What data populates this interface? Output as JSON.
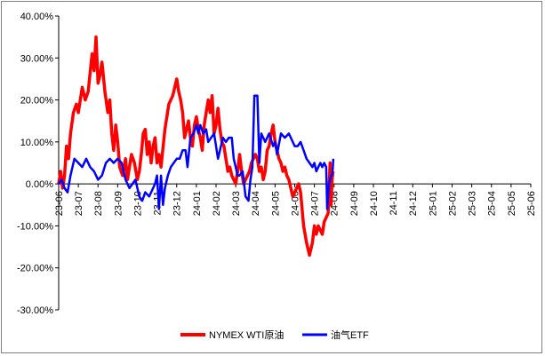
{
  "chart_data": {
    "type": "line",
    "title": "",
    "xlabel": "",
    "ylabel": "",
    "ylim": [
      -30,
      40
    ],
    "yticks": [
      -30,
      -20,
      -10,
      0,
      10,
      20,
      30,
      40
    ],
    "ytick_labels": [
      "-30.00%",
      "-20.00%",
      "-10.00%",
      "0.00%",
      "10.00%",
      "20.00%",
      "30.00%",
      "40.00%"
    ],
    "x_categories": [
      "23-06",
      "23-07",
      "23-08",
      "23-09",
      "23-10",
      "23-11",
      "23-12",
      "24-01",
      "24-02",
      "24-03",
      "24-04",
      "24-05",
      "24-06",
      "24-07",
      "24-08",
      "24-09",
      "24-10",
      "24-11",
      "24-12",
      "25-01",
      "25-02",
      "25-03",
      "25-04",
      "25-05",
      "25-06"
    ],
    "legend_position": "bottom",
    "grid": false,
    "series": [
      {
        "name": "NYMEX WTI原油",
        "color": "#ff0000",
        "values": [
          0,
          3,
          -1,
          2,
          9,
          6,
          12,
          17,
          19,
          17,
          23,
          20,
          22,
          31,
          27,
          35,
          24,
          26,
          29,
          22,
          17,
          20,
          12,
          8,
          14,
          10,
          4,
          2,
          6,
          1,
          4,
          7,
          5,
          1,
          3,
          7,
          12,
          13,
          7,
          10,
          5,
          9,
          11,
          5,
          7,
          4,
          13,
          19,
          21,
          25,
          22,
          20,
          17,
          11,
          13,
          15,
          11,
          9,
          14,
          16,
          13,
          11,
          8,
          14,
          17,
          20,
          17,
          21,
          12,
          14,
          18,
          13,
          10,
          9,
          6,
          3,
          4,
          2,
          1,
          0,
          3,
          7,
          3,
          0,
          1,
          2,
          3,
          5,
          6,
          7,
          6,
          3,
          4,
          1,
          3,
          8,
          9,
          12,
          14,
          10,
          8,
          6,
          5,
          3,
          4,
          2,
          1,
          -1,
          -3,
          -2,
          -1,
          0,
          -2,
          -10,
          -14,
          -17,
          -14,
          -10,
          -12,
          -10,
          -11,
          -12,
          -9,
          -8,
          -7,
          5,
          -5,
          1,
          3
        ],
        "x": [
          0.0,
          0.1,
          0.2,
          0.3,
          0.4,
          0.5,
          0.6,
          0.75,
          0.9,
          1.0,
          1.2,
          1.35,
          1.5,
          1.7,
          1.8,
          1.9,
          2.0,
          2.1,
          2.2,
          2.35,
          2.5,
          2.6,
          2.7,
          2.8,
          2.9,
          3.0,
          3.1,
          3.25,
          3.4,
          3.5,
          3.6,
          3.7,
          3.85,
          4.0,
          4.1,
          4.2,
          4.3,
          4.4,
          4.5,
          4.6,
          4.7,
          4.8,
          4.9,
          5.0,
          5.1,
          5.2,
          5.4,
          5.6,
          5.8,
          6.0,
          6.1,
          6.2,
          6.3,
          6.4,
          6.5,
          6.6,
          6.7,
          6.8,
          6.9,
          7.0,
          7.1,
          7.2,
          7.3,
          7.4,
          7.5,
          7.6,
          7.7,
          7.8,
          7.9,
          8.0,
          8.1,
          8.2,
          8.3,
          8.4,
          8.5,
          8.6,
          8.7,
          8.8,
          8.9,
          9.0,
          9.1,
          9.2,
          9.3,
          9.4,
          9.5,
          9.6,
          9.7,
          9.8,
          9.9,
          10.0,
          10.1,
          10.2,
          10.3,
          10.4,
          10.5,
          10.6,
          10.7,
          10.8,
          10.9,
          11.0,
          11.1,
          11.2,
          11.3,
          11.4,
          11.5,
          11.6,
          11.7,
          11.8,
          11.9,
          12.0,
          12.1,
          12.2,
          12.3,
          12.45,
          12.6,
          12.75,
          12.9,
          13.0,
          13.1,
          13.2,
          13.3,
          13.4,
          13.5,
          13.6,
          13.7,
          13.8,
          13.85,
          13.9,
          13.95
        ]
      },
      {
        "name": "油气ETF",
        "color": "#0000ff",
        "values": [
          0,
          1,
          -1,
          -2,
          2,
          6,
          5,
          4,
          6,
          4,
          3,
          1,
          2,
          5,
          6,
          5,
          6,
          5,
          1,
          -1,
          0,
          1,
          -1,
          -3,
          -4,
          -2,
          -3,
          -1,
          0,
          2,
          -6,
          2,
          -5,
          -1,
          2,
          4,
          5,
          6,
          6,
          8,
          8,
          4,
          11,
          12,
          14,
          12,
          14,
          12,
          13,
          10,
          11,
          12,
          9,
          6,
          8,
          11,
          10,
          11,
          11,
          6,
          4,
          2,
          2,
          3,
          -3,
          -4,
          1,
          4,
          21,
          21,
          5,
          12,
          10,
          12,
          9,
          10,
          7,
          12,
          11,
          12,
          10,
          9,
          9,
          10,
          8,
          6,
          5,
          4,
          5,
          3,
          4,
          5,
          4,
          5,
          4,
          -6,
          -3,
          0,
          1,
          2,
          2,
          2,
          3,
          4,
          6
        ],
        "x": [
          0.0,
          0.15,
          0.3,
          0.45,
          0.6,
          0.8,
          1.0,
          1.2,
          1.4,
          1.6,
          1.8,
          2.0,
          2.2,
          2.4,
          2.6,
          2.8,
          3.0,
          3.2,
          3.4,
          3.6,
          3.75,
          3.9,
          4.0,
          4.1,
          4.25,
          4.4,
          4.6,
          4.8,
          4.9,
          5.0,
          5.1,
          5.2,
          5.3,
          5.4,
          5.55,
          5.7,
          5.85,
          6.0,
          6.15,
          6.3,
          6.45,
          6.55,
          6.7,
          6.85,
          7.0,
          7.1,
          7.2,
          7.35,
          7.5,
          7.6,
          7.75,
          7.9,
          8.0,
          8.1,
          8.2,
          8.35,
          8.5,
          8.65,
          8.8,
          8.9,
          9.0,
          9.1,
          9.2,
          9.35,
          9.5,
          9.65,
          9.75,
          9.85,
          9.95,
          10.1,
          10.2,
          10.3,
          10.5,
          10.7,
          10.9,
          11.0,
          11.1,
          11.3,
          11.5,
          11.7,
          11.9,
          12.0,
          12.15,
          12.3,
          12.45,
          12.6,
          12.75,
          12.9,
          13.0,
          13.1,
          13.2,
          13.3,
          13.4,
          13.5,
          13.6,
          13.65,
          13.7,
          13.75,
          13.8,
          13.85,
          13.88,
          13.9,
          13.92,
          13.94,
          13.96
        ]
      }
    ]
  }
}
